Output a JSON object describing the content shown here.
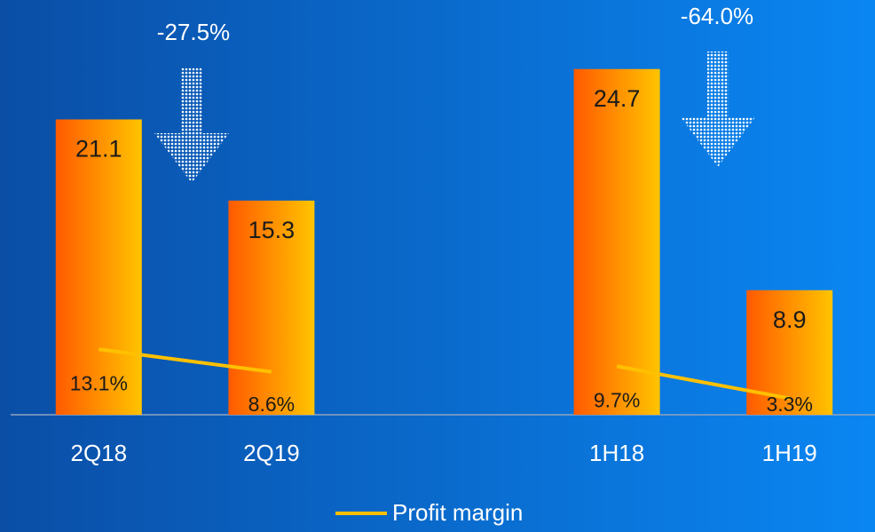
{
  "chart_data": {
    "type": "bar",
    "categories": [
      "2Q18",
      "2Q19",
      null,
      "1H18",
      "1H19"
    ],
    "series": [
      {
        "color": "#ffc400",
        "values": [
          21.1,
          15.3,
          null,
          24.7,
          8.9
        ]
      },
      {
        "name": "Profit margin",
        "type": "line",
        "axis": "y2",
        "color": "#ffc000",
        "values": [
          13.1,
          8.6,
          null,
          9.7,
          3.3
        ],
        "value_labels": [
          "13.1%",
          "8.6%",
          null,
          "9.7%",
          "3.3%"
        ]
      }
    ],
    "ylim": [
      0,
      25
    ],
    "y2lim": [
      0,
      70
    ],
    "annotations": [
      {
        "text": "-27.5%",
        "between": [
          "2Q18",
          "2Q19"
        ]
      },
      {
        "text": "-64.0%",
        "between": [
          "1H18",
          "1H19"
        ]
      }
    ],
    "legend": "bottom"
  }
}
